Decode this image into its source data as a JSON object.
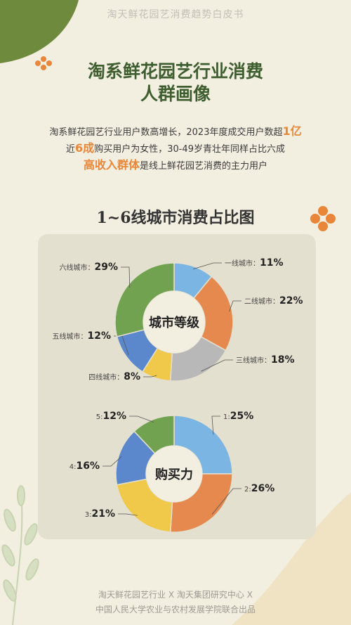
{
  "header": {
    "top_title": "淘天鲜花园艺消费趋势白皮书"
  },
  "main_title": {
    "line1": "淘系鲜花园艺行业消费",
    "line2": "人群画像"
  },
  "description": {
    "line1_a": "淘系鲜花园艺行业用户数高增长，2023年度成交用户数超",
    "line1_hl": "1亿",
    "line2_a": "近",
    "line2_hl": "6成",
    "line2_b": "购买用户为女性，30-49岁青壮年同样占比六成",
    "line3_hl": "高收入群体",
    "line3_b": "是线上鲜花园艺消费的主力用户"
  },
  "chart_section_title": "1~6线城市消费占比图",
  "chart_data": [
    {
      "type": "pie",
      "center_label": "城市等级",
      "categories": [
        "一线城市",
        "二线城市",
        "三线城市",
        "四线城市",
        "五线城市",
        "六线城市"
      ],
      "values": [
        11,
        22,
        18,
        8,
        12,
        29
      ],
      "labels": [
        "一线城市：",
        "二线城市：",
        "三线城市：",
        "四线城市：",
        "五线城市：",
        "六线城市："
      ],
      "value_labels": [
        "11%",
        "22%",
        "18%",
        "8%",
        "12%",
        "29%"
      ],
      "colors": [
        "#7ab5e3",
        "#e6894e",
        "#b8b8b8",
        "#f0c84a",
        "#5b88cc",
        "#70a24f"
      ]
    },
    {
      "type": "pie",
      "center_label": "购买力",
      "categories": [
        "1",
        "2",
        "3",
        "4",
        "5"
      ],
      "values": [
        25,
        26,
        21,
        16,
        12
      ],
      "labels": [
        "1:",
        "2:",
        "3:",
        "4:",
        "5:"
      ],
      "value_labels": [
        "25%",
        "26%",
        "21%",
        "16%",
        "12%"
      ],
      "colors": [
        "#7ab5e3",
        "#e6894e",
        "#f0c84a",
        "#5b88cc",
        "#70a24f"
      ]
    }
  ],
  "footer": {
    "line1": "淘天鲜花园艺行业 X 淘天集团研究中心 X",
    "line2": "中国人民大学农业与农村发展学院联合出品"
  }
}
